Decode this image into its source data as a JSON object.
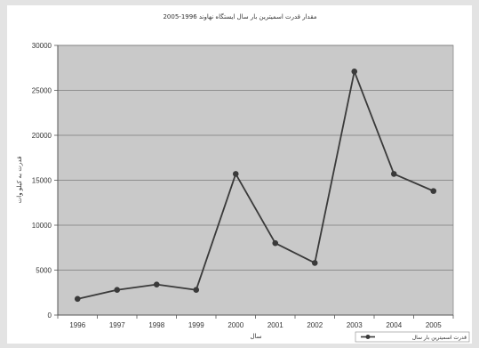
{
  "chart_data": {
    "type": "line",
    "title": "مقدار قدرت اسمیترین بار سال ایستگاه نهاوند 1996-2005",
    "xlabel": "سال",
    "ylabel": "قدرت به کیلو وات",
    "categories": [
      "1996",
      "1997",
      "1998",
      "1999",
      "2000",
      "2001",
      "2002",
      "2003",
      "2004",
      "2005"
    ],
    "series": [
      {
        "name": "قدرت اسمیترین بار سال",
        "values": [
          1800,
          2800,
          3400,
          2800,
          15700,
          8000,
          5800,
          27100,
          15700,
          13800
        ],
        "color": "#3a3a3a"
      }
    ],
    "yticks": [
      "0",
      "5000",
      "10000",
      "15000",
      "20000",
      "25000",
      "30000"
    ],
    "ylim": [
      0,
      30000
    ],
    "grid": true,
    "legend_position": "bottom-right",
    "plot_background": "#c9c9c9"
  }
}
